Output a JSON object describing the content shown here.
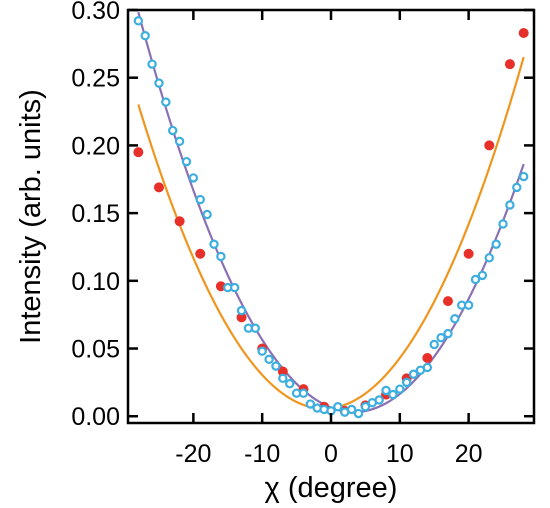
{
  "chart_data": {
    "type": "scatter",
    "title": "",
    "xlabel": "χ (degree)",
    "ylabel": "Intensity (arb. units)",
    "xlim": [
      -29.5,
      29.5
    ],
    "ylim": [
      -0.005,
      0.3
    ],
    "xticks": [
      -20,
      -10,
      0,
      10,
      20
    ],
    "xtick_labels": [
      "-20",
      "-10",
      "0",
      "10",
      "20"
    ],
    "yticks": [
      0.0,
      0.05,
      0.1,
      0.15,
      0.2,
      0.25,
      0.3
    ],
    "ytick_labels": [
      "0.00",
      "0.05",
      "0.10",
      "0.15",
      "0.20",
      "0.25",
      "0.30"
    ],
    "grid": false,
    "legend": "none",
    "series": [
      {
        "marker": "filled-circle",
        "color": "#e8302a",
        "fit_color": "#f0961e",
        "x": [
          -28,
          -25,
          -22,
          -19,
          -16,
          -13,
          -10,
          -7,
          -4,
          -1,
          2,
          5,
          8,
          11,
          14,
          17,
          20,
          23,
          26,
          28
        ],
        "y": [
          0.195,
          0.169,
          0.144,
          0.12,
          0.096,
          0.073,
          0.05,
          0.033,
          0.02,
          0.007,
          0.004,
          0.008,
          0.016,
          0.028,
          0.043,
          0.085,
          0.12,
          0.2,
          0.26,
          0.283
        ]
      },
      {
        "marker": "open-circle",
        "color": "#3daee0",
        "fit_color": "#8a70b4",
        "x": [
          -28,
          -27,
          -26,
          -25,
          -24,
          -23,
          -22,
          -21,
          -20,
          -19,
          -18,
          -17,
          -16,
          -15,
          -14,
          -13,
          -12,
          -11,
          -10,
          -9,
          -8,
          -7,
          -6,
          -5,
          -4,
          -3,
          -2,
          -1,
          0,
          1,
          2,
          3,
          4,
          5,
          6,
          7,
          8,
          9,
          10,
          11,
          12,
          13,
          14,
          15,
          16,
          17,
          18,
          19,
          20,
          21,
          22,
          23,
          24,
          25,
          26,
          27,
          28
        ],
        "y": [
          0.292,
          0.281,
          0.26,
          0.246,
          0.232,
          0.211,
          0.203,
          0.188,
          0.176,
          0.16,
          0.149,
          0.127,
          0.118,
          0.095,
          0.095,
          0.078,
          0.065,
          0.065,
          0.048,
          0.042,
          0.037,
          0.028,
          0.024,
          0.017,
          0.017,
          0.009,
          0.006,
          0.005,
          0.004,
          0.007,
          0.003,
          0.005,
          0.002,
          0.007,
          0.01,
          0.012,
          0.019,
          0.016,
          0.02,
          0.025,
          0.031,
          0.034,
          0.036,
          0.053,
          0.058,
          0.061,
          0.072,
          0.082,
          0.082,
          0.101,
          0.104,
          0.117,
          0.127,
          0.142,
          0.156,
          0.169,
          0.177
        ]
      }
    ]
  }
}
